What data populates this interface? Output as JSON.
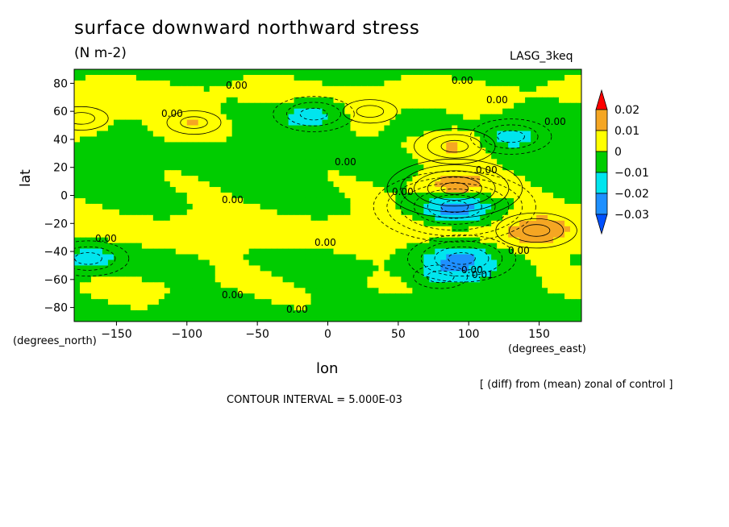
{
  "chart_data": {
    "type": "heatmap",
    "title": "surface downward northward stress",
    "subtitle": "(N m-2)",
    "model_label": "LASG_3keq",
    "xlabel": "lon",
    "ylabel": "lat",
    "x_units": "(degrees_east)",
    "y_units": "(degrees_north)",
    "xlim": [
      -180,
      180
    ],
    "ylim": [
      -90,
      90
    ],
    "x_ticks": [
      -150,
      -100,
      -50,
      0,
      50,
      100,
      150
    ],
    "x_tick_labels": [
      "−150",
      "−100",
      "−50",
      "0",
      "50",
      "100",
      "150"
    ],
    "y_ticks": [
      80,
      60,
      40,
      20,
      0,
      -20,
      -40,
      -60,
      -80
    ],
    "y_tick_labels": [
      "80",
      "60",
      "40",
      "20",
      "0",
      "−20",
      "−40",
      "−60",
      "−80"
    ],
    "colorbar": {
      "labels": [
        "0.02",
        "0.01",
        "0",
        "−0.01",
        "−0.02",
        "−0.03"
      ],
      "bins": [
        {
          "from": 0.02,
          "to": null,
          "color": "#ff0000"
        },
        {
          "from": 0.01,
          "to": 0.02,
          "color": "#f5a623"
        },
        {
          "from": 0,
          "to": 0.01,
          "color": "#ffff00"
        },
        {
          "from": -0.01,
          "to": 0,
          "color": "#00cc00"
        },
        {
          "from": -0.02,
          "to": -0.01,
          "color": "#00e5ee"
        },
        {
          "from": -0.03,
          "to": -0.02,
          "color": "#1e90ff"
        },
        {
          "from": null,
          "to": -0.03,
          "color": "#0050ff"
        }
      ]
    },
    "contour_labels": [
      "0.00",
      "0.00",
      "0.00",
      "0.00",
      "0.00",
      "0.00",
      "0.00",
      "0.00",
      "0.00",
      "0.00",
      "0.00",
      "0.00",
      "0.00",
      "0.00",
      "0.00",
      "0.01"
    ],
    "anomaly_centers": [
      {
        "lon": 90,
        "lat": 5,
        "value": 0.025
      },
      {
        "lon": 90,
        "lat": 35,
        "value": 0.014
      },
      {
        "lon": 148,
        "lat": -25,
        "value": 0.013
      },
      {
        "lon": 90,
        "lat": -8,
        "value": -0.028
      },
      {
        "lon": 95,
        "lat": -45,
        "value": -0.018
      },
      {
        "lon": -10,
        "lat": 58,
        "value": -0.015
      },
      {
        "lon": 130,
        "lat": 42,
        "value": -0.013
      },
      {
        "lon": -170,
        "lat": -45,
        "value": -0.013
      },
      {
        "lon": -95,
        "lat": 52,
        "value": 0.01
      },
      {
        "lon": -175,
        "lat": 55,
        "value": 0.01
      },
      {
        "lon": 80,
        "lat": -58,
        "value": -0.012
      },
      {
        "lon": 30,
        "lat": 60,
        "value": 0.008
      }
    ],
    "grid": false
  },
  "annotations": {
    "note": "[ (diff) from (mean) zonal of control ]",
    "contour_interval": "CONTOUR INTERVAL = 5.000E-03"
  }
}
